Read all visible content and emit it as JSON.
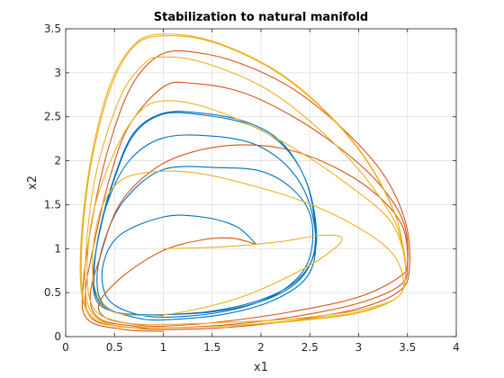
{
  "chart_data": {
    "type": "line",
    "title": "Stabilization to natural manifold",
    "xlabel": "x1",
    "ylabel": "x2",
    "xlim": [
      0,
      4
    ],
    "ylim": [
      0,
      3.5
    ],
    "xticks": [
      0,
      0.5,
      1,
      1.5,
      2,
      2.5,
      3,
      3.5,
      4
    ],
    "xtick_labels": [
      "0",
      "0.5",
      "1",
      "1.5",
      "2",
      "2.5",
      "3",
      "3.5",
      "4"
    ],
    "yticks": [
      0,
      0.5,
      1,
      1.5,
      2,
      2.5,
      3,
      3.5
    ],
    "ytick_labels": [
      "0",
      "0.5",
      "1",
      "1.5",
      "2",
      "2.5",
      "3",
      "3.5"
    ],
    "grid": true,
    "series": [
      {
        "color": "#0072BD",
        "lines": [
          [
            [
              1.95,
              1.05
            ],
            [
              1.75,
              1.25
            ],
            [
              1.4,
              1.36
            ],
            [
              1.0,
              1.36
            ],
            [
              0.55,
              1.15
            ],
            [
              0.38,
              0.8
            ],
            [
              0.42,
              0.45
            ],
            [
              0.65,
              0.28
            ],
            [
              1.0,
              0.22
            ],
            [
              1.6,
              0.28
            ],
            [
              2.1,
              0.45
            ],
            [
              2.4,
              0.7
            ],
            [
              2.52,
              1.0
            ],
            [
              2.5,
              1.4
            ],
            [
              2.3,
              1.7
            ],
            [
              2.0,
              1.88
            ],
            [
              1.6,
              1.92
            ],
            [
              1.0,
              1.9
            ],
            [
              0.6,
              1.55
            ],
            [
              0.4,
              1.1
            ],
            [
              0.32,
              0.65
            ],
            [
              0.4,
              0.35
            ],
            [
              0.7,
              0.22
            ],
            [
              1.0,
              0.19
            ],
            [
              1.6,
              0.25
            ],
            [
              2.1,
              0.4
            ],
            [
              2.45,
              0.65
            ],
            [
              2.56,
              1.0
            ],
            [
              2.5,
              1.5
            ],
            [
              2.3,
              1.9
            ],
            [
              1.95,
              2.18
            ],
            [
              1.5,
              2.28
            ],
            [
              1.0,
              2.26
            ],
            [
              0.65,
              2.0
            ],
            [
              0.42,
              1.5
            ],
            [
              0.3,
              0.9
            ],
            [
              0.3,
              0.5
            ],
            [
              0.45,
              0.3
            ],
            [
              0.7,
              0.25
            ],
            [
              1.0,
              0.25
            ],
            [
              1.5,
              0.28
            ],
            [
              2.0,
              0.4
            ],
            [
              2.35,
              0.6
            ],
            [
              2.53,
              0.9
            ],
            [
              2.55,
              1.3
            ],
            [
              2.45,
              1.8
            ],
            [
              2.2,
              2.2
            ],
            [
              1.85,
              2.42
            ],
            [
              1.4,
              2.52
            ],
            [
              1.0,
              2.53
            ],
            [
              0.7,
              2.3
            ],
            [
              0.5,
              1.8
            ],
            [
              0.35,
              1.2
            ],
            [
              0.28,
              0.7
            ],
            [
              0.32,
              0.4
            ],
            [
              0.5,
              0.28
            ],
            [
              0.75,
              0.25
            ],
            [
              1.0,
              0.25
            ],
            [
              1.5,
              0.29
            ],
            [
              2.0,
              0.42
            ],
            [
              2.35,
              0.62
            ],
            [
              2.54,
              0.92
            ],
            [
              2.56,
              1.3
            ],
            [
              2.45,
              1.8
            ],
            [
              2.2,
              2.22
            ],
            [
              1.85,
              2.44
            ],
            [
              1.4,
              2.54
            ],
            [
              1.0,
              2.54
            ],
            [
              0.7,
              2.32
            ],
            [
              0.5,
              1.82
            ],
            [
              0.35,
              1.22
            ],
            [
              0.29,
              0.72
            ],
            [
              0.33,
              0.42
            ],
            [
              0.5,
              0.28
            ],
            [
              0.75,
              0.25
            ],
            [
              1.0,
              0.24
            ]
          ]
        ]
      },
      {
        "color": "#D95319",
        "lines": [
          [
            [
              1.95,
              1.05
            ],
            [
              1.7,
              1.12
            ],
            [
              1.4,
              1.1
            ],
            [
              1.0,
              0.98
            ],
            [
              0.6,
              0.7
            ],
            [
              0.35,
              0.4
            ],
            [
              0.4,
              0.22
            ],
            [
              0.7,
              0.14
            ],
            [
              1.0,
              0.12
            ],
            [
              1.6,
              0.17
            ],
            [
              2.3,
              0.28
            ],
            [
              3.0,
              0.45
            ],
            [
              3.42,
              0.68
            ],
            [
              3.5,
              0.85
            ],
            [
              3.45,
              1.25
            ],
            [
              3.2,
              1.6
            ],
            [
              2.8,
              1.9
            ],
            [
              2.3,
              2.12
            ],
            [
              1.8,
              2.18
            ],
            [
              1.3,
              2.1
            ],
            [
              0.9,
              1.9
            ],
            [
              0.55,
              1.5
            ],
            [
              0.35,
              0.9
            ],
            [
              0.25,
              0.45
            ],
            [
              0.35,
              0.2
            ],
            [
              0.7,
              0.12
            ],
            [
              1.0,
              0.1
            ],
            [
              1.6,
              0.13
            ],
            [
              2.3,
              0.22
            ],
            [
              3.0,
              0.38
            ],
            [
              3.42,
              0.58
            ],
            [
              3.5,
              0.8
            ],
            [
              3.46,
              1.3
            ],
            [
              3.2,
              1.75
            ],
            [
              2.8,
              2.15
            ],
            [
              2.3,
              2.52
            ],
            [
              1.8,
              2.78
            ],
            [
              1.3,
              2.88
            ],
            [
              1.0,
              2.84
            ],
            [
              0.65,
              2.4
            ],
            [
              0.45,
              1.8
            ],
            [
              0.28,
              1.0
            ],
            [
              0.2,
              0.45
            ],
            [
              0.3,
              0.18
            ],
            [
              0.7,
              0.1
            ],
            [
              1.0,
              0.08
            ],
            [
              1.6,
              0.1
            ],
            [
              2.3,
              0.18
            ],
            [
              3.0,
              0.32
            ],
            [
              3.42,
              0.52
            ],
            [
              3.52,
              0.78
            ],
            [
              3.48,
              1.3
            ],
            [
              3.25,
              1.85
            ],
            [
              2.85,
              2.35
            ],
            [
              2.35,
              2.8
            ],
            [
              1.85,
              3.08
            ],
            [
              1.4,
              3.22
            ],
            [
              1.0,
              3.22
            ],
            [
              0.7,
              2.9
            ],
            [
              0.48,
              2.3
            ],
            [
              0.3,
              1.5
            ],
            [
              0.18,
              0.6
            ],
            [
              0.22,
              0.2
            ],
            [
              0.6,
              0.08
            ],
            [
              1.0,
              0.06
            ]
          ]
        ]
      },
      {
        "color": "#EDB120",
        "lines": [
          [
            [
              1.0,
              1.0
            ],
            [
              1.6,
              1.02
            ],
            [
              2.2,
              1.08
            ],
            [
              2.6,
              1.15
            ],
            [
              2.82,
              1.13
            ],
            [
              2.75,
              1.0
            ],
            [
              2.4,
              0.75
            ],
            [
              1.8,
              0.45
            ],
            [
              1.2,
              0.28
            ],
            [
              0.8,
              0.24
            ],
            [
              0.45,
              0.3
            ],
            [
              0.3,
              0.55
            ],
            [
              0.28,
              1.0
            ],
            [
              0.38,
              1.5
            ],
            [
              0.6,
              1.8
            ],
            [
              1.0,
              1.88
            ],
            [
              1.4,
              1.85
            ],
            [
              1.9,
              1.72
            ],
            [
              2.4,
              1.55
            ],
            [
              2.9,
              1.3
            ],
            [
              3.3,
              1.0
            ],
            [
              3.45,
              0.7
            ],
            [
              3.4,
              0.45
            ],
            [
              3.0,
              0.3
            ],
            [
              2.3,
              0.2
            ],
            [
              1.6,
              0.16
            ],
            [
              1.0,
              0.14
            ],
            [
              0.6,
              0.16
            ],
            [
              0.3,
              0.3
            ],
            [
              0.22,
              0.7
            ],
            [
              0.28,
              1.4
            ],
            [
              0.5,
              2.1
            ],
            [
              0.75,
              2.55
            ],
            [
              1.0,
              2.68
            ],
            [
              1.4,
              2.62
            ],
            [
              1.9,
              2.4
            ],
            [
              2.4,
              2.1
            ],
            [
              2.9,
              1.72
            ],
            [
              3.3,
              1.35
            ],
            [
              3.45,
              1.0
            ],
            [
              3.48,
              0.7
            ],
            [
              3.4,
              0.45
            ],
            [
              3.0,
              0.28
            ],
            [
              2.3,
              0.18
            ],
            [
              1.6,
              0.12
            ],
            [
              1.0,
              0.1
            ],
            [
              0.5,
              0.13
            ],
            [
              0.25,
              0.3
            ],
            [
              0.2,
              0.8
            ],
            [
              0.3,
              1.8
            ],
            [
              0.55,
              2.7
            ],
            [
              0.8,
              3.1
            ],
            [
              1.0,
              3.18
            ],
            [
              1.4,
              3.12
            ],
            [
              2.0,
              2.85
            ],
            [
              2.5,
              2.45
            ],
            [
              3.0,
              1.9
            ],
            [
              3.35,
              1.35
            ],
            [
              3.45,
              1.0
            ],
            [
              3.48,
              0.7
            ],
            [
              3.4,
              0.45
            ],
            [
              3.0,
              0.27
            ],
            [
              2.3,
              0.17
            ],
            [
              1.6,
              0.12
            ],
            [
              1.0,
              0.1
            ],
            [
              0.5,
              0.12
            ],
            [
              0.22,
              0.3
            ],
            [
              0.16,
              0.9
            ],
            [
              0.25,
              1.9
            ],
            [
              0.45,
              2.8
            ],
            [
              0.7,
              3.3
            ],
            [
              1.0,
              3.42
            ],
            [
              1.5,
              3.35
            ],
            [
              2.1,
              3.05
            ],
            [
              2.6,
              2.62
            ],
            [
              3.05,
              2.05
            ],
            [
              3.35,
              1.45
            ],
            [
              3.46,
              1.0
            ],
            [
              3.48,
              0.7
            ],
            [
              3.4,
              0.45
            ],
            [
              3.0,
              0.27
            ],
            [
              2.3,
              0.17
            ],
            [
              1.6,
              0.12
            ],
            [
              1.0,
              0.1
            ],
            [
              0.5,
              0.12
            ],
            [
              0.21,
              0.3
            ],
            [
              0.15,
              0.9
            ],
            [
              0.24,
              1.9
            ],
            [
              0.44,
              2.82
            ],
            [
              0.7,
              3.32
            ],
            [
              1.0,
              3.44
            ],
            [
              1.5,
              3.36
            ],
            [
              2.1,
              3.06
            ],
            [
              2.6,
              2.63
            ],
            [
              3.05,
              2.06
            ],
            [
              3.35,
              1.46
            ],
            [
              3.46,
              1.01
            ]
          ]
        ]
      }
    ]
  }
}
